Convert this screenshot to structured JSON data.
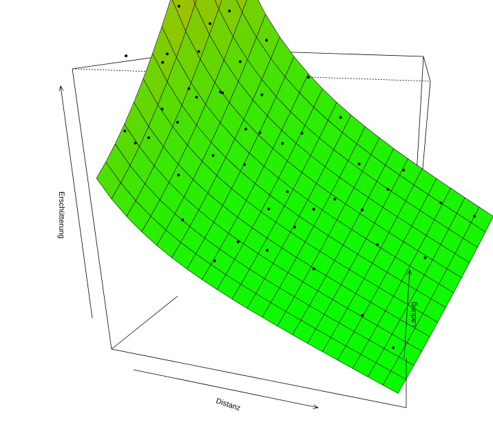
{
  "chart_data": {
    "type": "surface3d",
    "xlabel": "Distanz",
    "ylabel": "Ladung",
    "zlabel": "Erschütterung",
    "grid": false,
    "legend": "none",
    "surface": {
      "grid_cols": 12,
      "grid_rows": 20,
      "color_low": "#00ff00",
      "color_high": "#ff9a00",
      "edge_color": "#000000"
    },
    "points": [
      [
        0.08,
        0.05,
        0.98
      ],
      [
        0.12,
        0.42,
        0.92
      ],
      [
        0.2,
        0.05,
        0.8
      ],
      [
        0.18,
        0.75,
        0.7
      ],
      [
        0.05,
        0.12,
        0.48
      ],
      [
        0.1,
        0.2,
        0.41
      ],
      [
        0.16,
        0.3,
        0.45
      ],
      [
        0.25,
        0.45,
        0.55
      ],
      [
        0.12,
        0.6,
        0.5
      ],
      [
        0.3,
        0.55,
        0.3
      ],
      [
        0.4,
        0.62,
        0.25
      ],
      [
        0.18,
        0.35,
        0.6
      ],
      [
        0.08,
        0.38,
        0.62
      ],
      [
        0.35,
        0.4,
        0.3
      ],
      [
        0.28,
        0.3,
        0.38
      ],
      [
        0.45,
        0.35,
        0.2
      ],
      [
        0.55,
        0.5,
        0.15
      ],
      [
        0.22,
        0.55,
        0.42
      ],
      [
        0.05,
        0.5,
        0.52
      ],
      [
        0.15,
        0.8,
        0.55
      ],
      [
        0.6,
        0.8,
        0.16
      ],
      [
        0.7,
        0.8,
        0.12
      ],
      [
        0.85,
        0.9,
        0.1
      ],
      [
        0.95,
        0.95,
        0.08
      ],
      [
        0.5,
        0.9,
        0.22
      ],
      [
        0.62,
        0.3,
        0.08
      ],
      [
        0.4,
        0.2,
        0.12
      ],
      [
        0.25,
        0.1,
        0.2
      ],
      [
        0.35,
        0.12,
        0.05
      ],
      [
        0.8,
        0.25,
        0.04
      ],
      [
        0.92,
        0.2,
        0.02
      ],
      [
        0.75,
        0.55,
        0.1
      ],
      [
        0.58,
        0.62,
        0.12
      ],
      [
        0.66,
        0.66,
        0.1
      ],
      [
        0.46,
        0.5,
        0.16
      ],
      [
        0.3,
        0.7,
        0.34
      ],
      [
        0.2,
        0.2,
        0.3
      ],
      [
        0.1,
        0.08,
        0.5
      ],
      [
        0.42,
        0.75,
        0.2
      ],
      [
        0.33,
        0.6,
        0.26
      ],
      [
        0.52,
        0.4,
        0.12
      ],
      [
        0.15,
        0.5,
        0.38
      ],
      [
        0.48,
        0.25,
        0.1
      ],
      [
        0.72,
        0.9,
        0.15
      ],
      [
        0.88,
        0.65,
        0.06
      ],
      [
        0.26,
        0.85,
        0.45
      ],
      [
        0.38,
        0.92,
        0.3
      ],
      [
        0.06,
        0.9,
        0.85
      ],
      [
        0.14,
        0.65,
        0.62
      ],
      [
        0.24,
        0.66,
        0.5
      ]
    ]
  }
}
